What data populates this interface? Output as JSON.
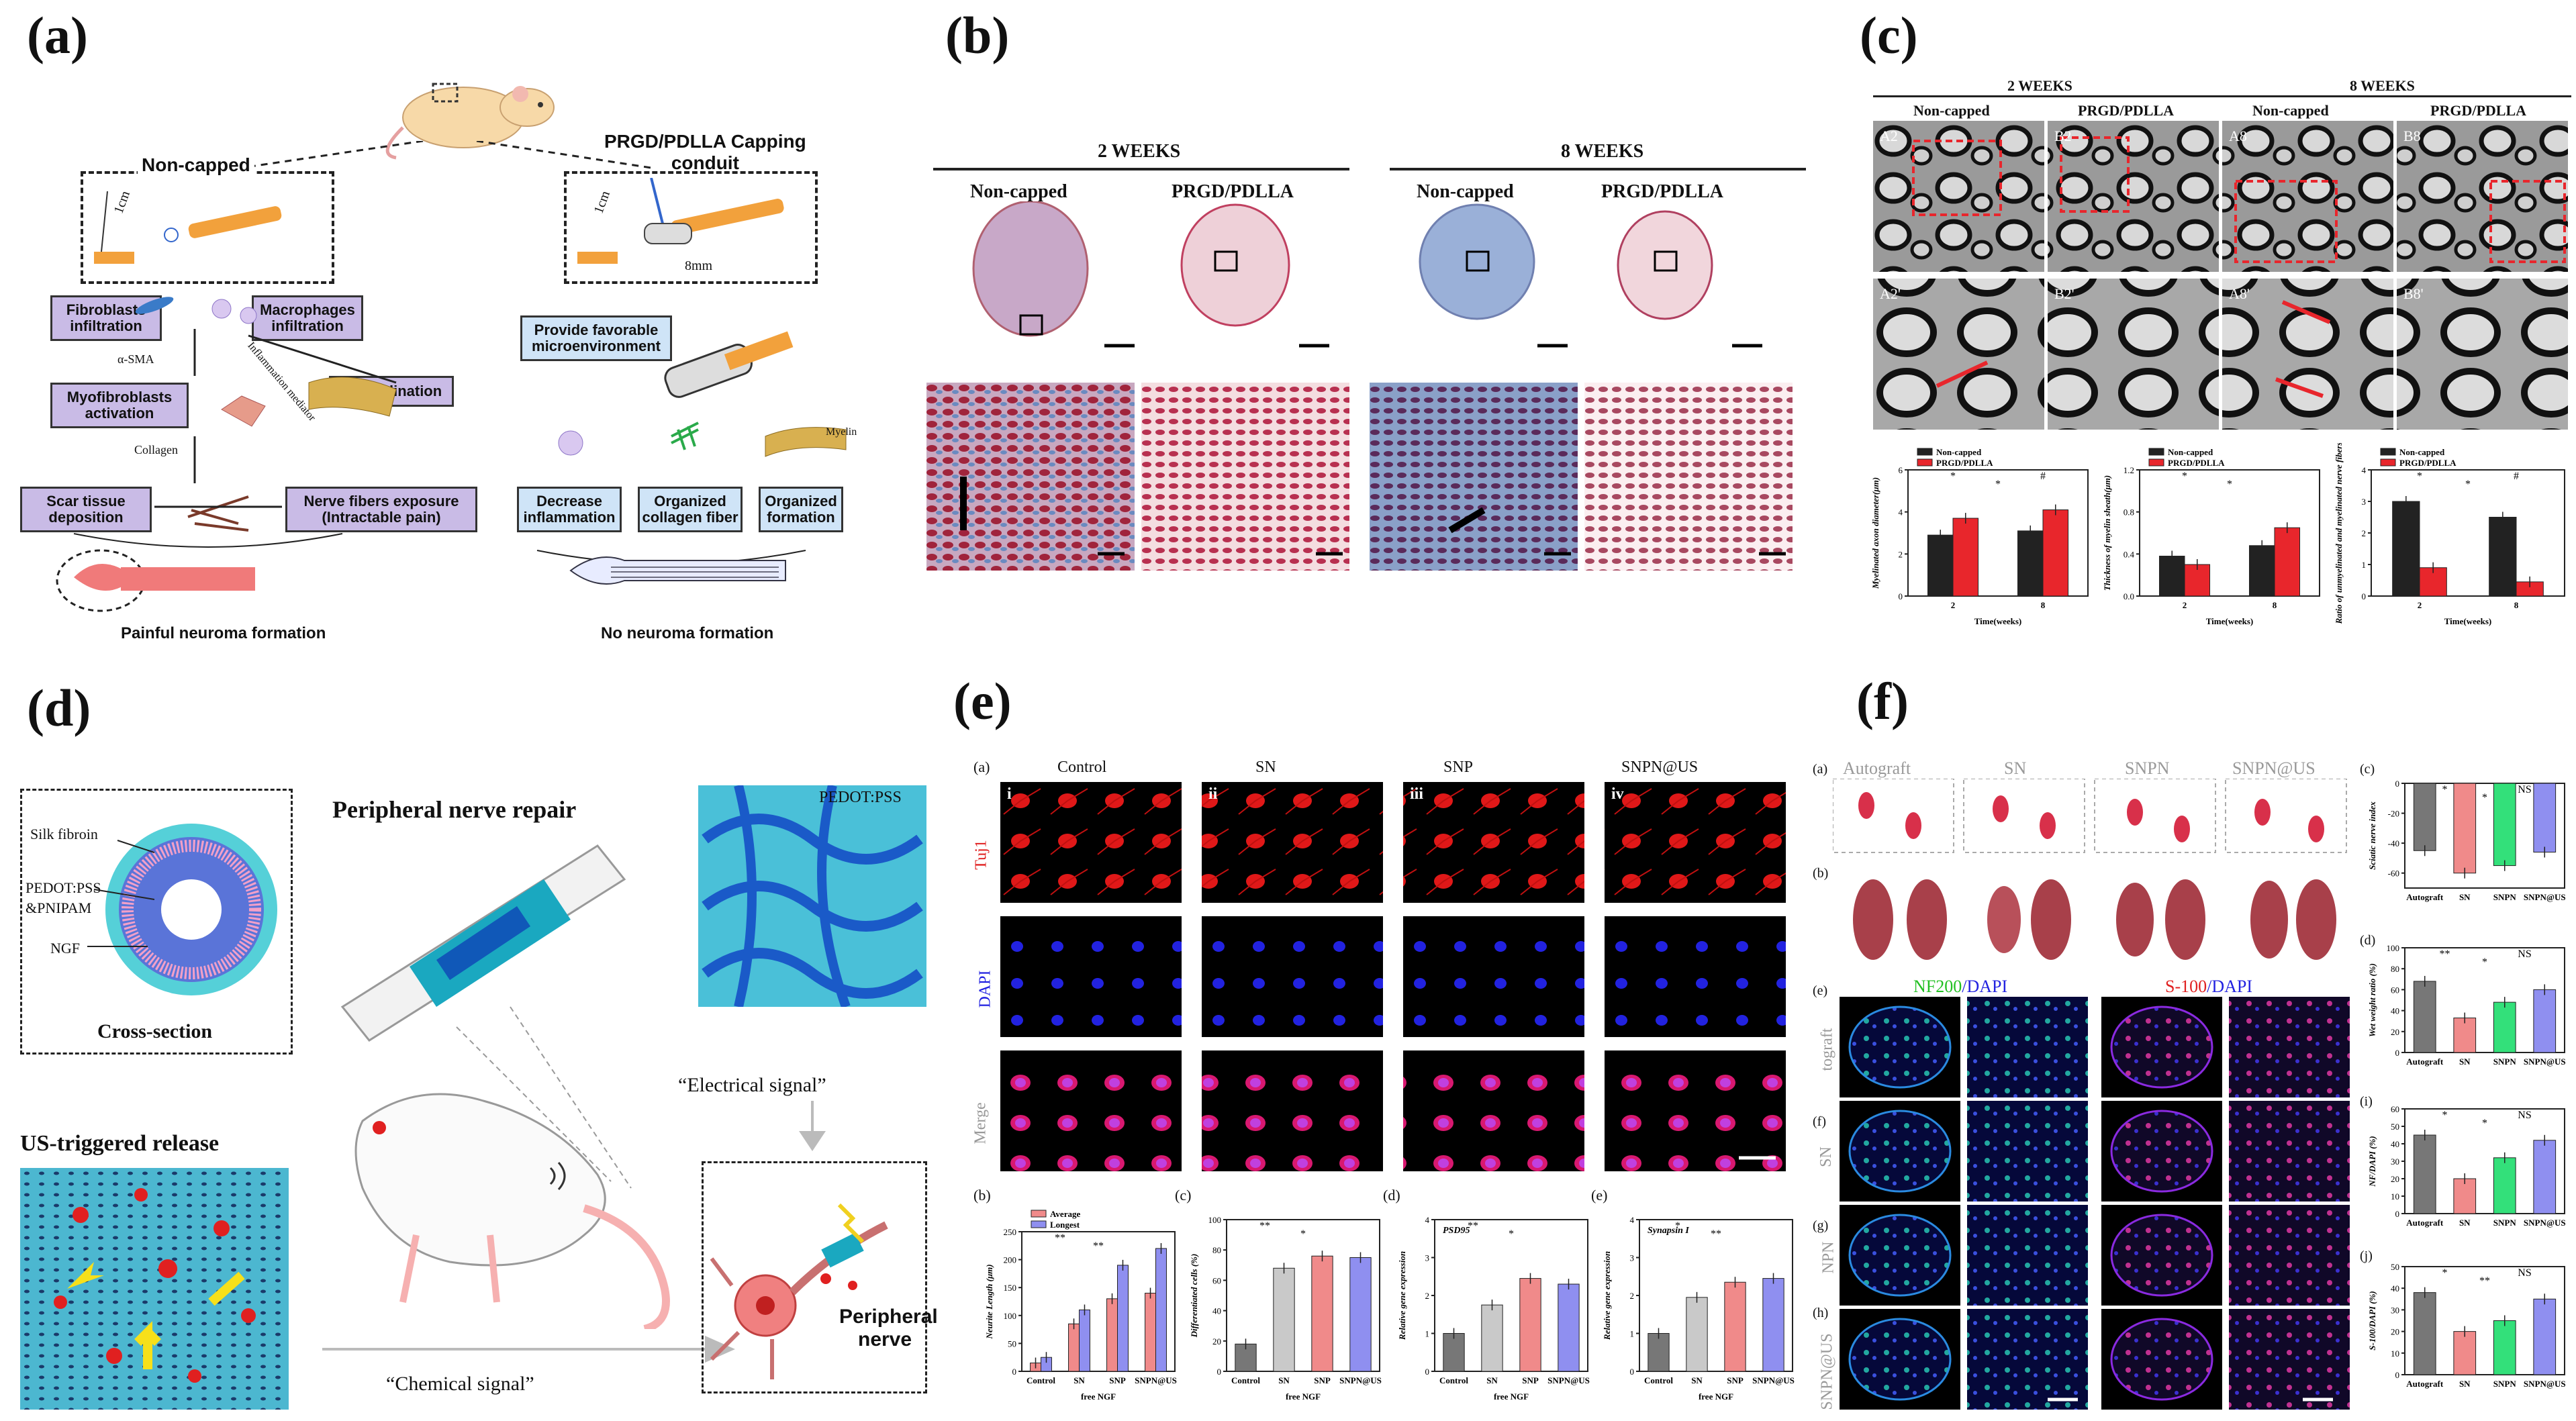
{
  "panels": {
    "a": "(a)",
    "b": "(b)",
    "c": "(c)",
    "d": "(d)",
    "e": "(e)",
    "f": "(f)"
  },
  "a": {
    "noncapped": "Non-capped",
    "capped": "PRGD/PDLLA Capping",
    "capped2": "conduit",
    "len1": "1cm",
    "len2": "1cm",
    "len3": "8mm",
    "fib": "Fibroblasts infiltration",
    "mac": "Macrophages infiltration",
    "myo": "Myofibroblasts activation",
    "demy": "Demyelination",
    "scar": "Scar tissue deposition",
    "nerve": "Nerve fibers exposure (Intractable pain)",
    "asma": "α-SMA",
    "collagen": "Collagen",
    "inflam": "Inflammation mediator",
    "fav": "Provide favorable microenvironment",
    "myelin": "Myelin",
    "dec": "Decrease inflammation",
    "org": "Organized collagen fiber",
    "orgf": "Organized formation",
    "painful": "Painful neuroma formation",
    "noneuroma": "No neuroma formation"
  },
  "b": {
    "w2": "2 WEEKS",
    "w8": "8 WEEKS",
    "cols": [
      "Non-capped",
      "PRGD/PDLLA",
      "Non-capped",
      "PRGD/PDLLA"
    ]
  },
  "c": {
    "w2": "2 WEEKS",
    "w8": "8 WEEKS",
    "cols": [
      "Non-capped",
      "PRGD/PDLLA",
      "Non-capped",
      "PRGD/PDLLA"
    ],
    "em_labels": [
      "A2",
      "B2",
      "A8",
      "B8",
      "A2'",
      "B2'",
      "A8'",
      "B8'"
    ]
  },
  "d": {
    "silk": "Silk fibroin",
    "pedot": "PEDOT:PSS",
    "pnipam": "&PNIPAM",
    "ngf": "NGF",
    "cross": "Cross-section",
    "us": "US-triggered release",
    "repair": "Peripheral nerve repair",
    "pedot2": "PEDOT:PSS",
    "electrical": "“Electrical signal”",
    "chemical": "“Chemical signal”",
    "pn1": "Peripheral",
    "pn2": "nerve"
  },
  "e": {
    "sub_a": "(a)",
    "cols": [
      "Control",
      "SN",
      "SNP",
      "SNPN@US"
    ],
    "roman": [
      "i",
      "ii",
      "iii",
      "iv"
    ],
    "rows": [
      "Tuj1",
      "DAPI",
      "Merge"
    ],
    "sub_b": "(b)",
    "sub_c": "(c)",
    "sub_d": "(d)",
    "sub_e": "(e)",
    "legend_avg": "Average",
    "legend_long": "Longest",
    "free_ngf": "free NGF"
  },
  "f": {
    "cols": [
      "Autograft",
      "SN",
      "SNPN",
      "SNPN@US"
    ],
    "sub": [
      "(a)",
      "(b)",
      "(c)",
      "(d)",
      "(e)",
      "(f)",
      "(g)",
      "(h)",
      "(i)",
      "(j)"
    ],
    "nf200": "NF200",
    "dapi": "/DAPI",
    "s100": "S-100",
    "dapi2": "/DAPI",
    "rows": [
      "tograft",
      "SN",
      "NPN",
      "SNPN@US"
    ]
  },
  "chart_data": [
    {
      "type": "bar",
      "title": "",
      "xlabel": "Time(weeks)",
      "ylabel": "Myelinated axon diameter(μm)",
      "categories": [
        "2",
        "8"
      ],
      "series": [
        {
          "name": "Non-capped",
          "values": [
            2.9,
            3.1
          ]
        },
        {
          "name": "PRGD/PDLLA",
          "values": [
            3.7,
            4.1
          ]
        }
      ],
      "ylim": [
        0,
        6
      ],
      "yticks": [
        "0",
        "2",
        "4",
        "6"
      ],
      "colors": [
        "#222222",
        "#e8262c"
      ],
      "annotations": [
        "*",
        "*",
        "#"
      ]
    },
    {
      "type": "bar",
      "title": "",
      "xlabel": "Time(weeks)",
      "ylabel": "Thickness of myelin sheath(μm)",
      "categories": [
        "2",
        "8"
      ],
      "series": [
        {
          "name": "Non-capped",
          "values": [
            0.38,
            0.48
          ]
        },
        {
          "name": "PRGD/PDLLA",
          "values": [
            0.3,
            0.65
          ]
        }
      ],
      "ylim": [
        0,
        1.2
      ],
      "yticks": [
        "0.0",
        "0.4",
        "0.8",
        "1.2"
      ],
      "colors": [
        "#222222",
        "#e8262c"
      ],
      "annotations": [
        "*",
        "*"
      ]
    },
    {
      "type": "bar",
      "title": "",
      "xlabel": "Time(weeks)",
      "ylabel": "Ratio of unmyelinated and myelinated nerve fibers",
      "categories": [
        "2",
        "8"
      ],
      "series": [
        {
          "name": "Non-capped",
          "values": [
            3.0,
            2.5
          ]
        },
        {
          "name": "PRGD/PDLLA",
          "values": [
            0.9,
            0.45
          ]
        }
      ],
      "ylim": [
        0,
        4
      ],
      "yticks": [
        "0",
        "1",
        "2",
        "3",
        "4"
      ],
      "colors": [
        "#222222",
        "#e8262c"
      ],
      "annotations": [
        "*",
        "*",
        "#"
      ]
    },
    {
      "type": "bar",
      "title": "",
      "xlabel": "free NGF",
      "ylabel": "Neurite Length (μm)",
      "categories": [
        "Control",
        "SN",
        "SNP",
        "SNPN@US"
      ],
      "series": [
        {
          "name": "Average",
          "values": [
            15,
            85,
            130,
            140
          ]
        },
        {
          "name": "Longest",
          "values": [
            25,
            110,
            190,
            220
          ]
        }
      ],
      "ylim": [
        0,
        250
      ],
      "yticks": [
        "0",
        "50",
        "100",
        "150",
        "200",
        "250"
      ],
      "colors": [
        "#f08a8a",
        "#8f8ff0"
      ],
      "annotations": [
        "**",
        "**"
      ]
    },
    {
      "type": "bar",
      "title": "",
      "xlabel": "free NGF",
      "ylabel": "Differentiated cells (%)",
      "categories": [
        "Control",
        "SN",
        "SNP",
        "SNPN@US"
      ],
      "series": [
        {
          "name": "",
          "values": [
            18,
            68,
            76,
            75
          ]
        }
      ],
      "ylim": [
        0,
        100
      ],
      "yticks": [
        "0",
        "20",
        "40",
        "60",
        "80",
        "100"
      ],
      "colors": [
        "#777777",
        "#c9c9c9",
        "#f08a8a",
        "#8f8ff0"
      ],
      "annotations": [
        "**",
        "*"
      ]
    },
    {
      "type": "bar",
      "title": "PSD95",
      "xlabel": "free NGF",
      "ylabel": "Relative gene expression",
      "categories": [
        "Control",
        "SN",
        "SNP",
        "SNPN@US"
      ],
      "series": [
        {
          "name": "",
          "values": [
            1.0,
            1.75,
            2.45,
            2.3
          ]
        }
      ],
      "ylim": [
        0,
        4
      ],
      "yticks": [
        "0",
        "1",
        "2",
        "3",
        "4"
      ],
      "colors": [
        "#777777",
        "#c9c9c9",
        "#f08a8a",
        "#8f8ff0"
      ],
      "annotations": [
        "**",
        "*"
      ]
    },
    {
      "type": "bar",
      "title": "Synapsin I",
      "xlabel": "free NGF",
      "ylabel": "Relative gene expression",
      "categories": [
        "Control",
        "SN",
        "SNP",
        "SNPN@US"
      ],
      "series": [
        {
          "name": "",
          "values": [
            1.0,
            1.95,
            2.35,
            2.45
          ]
        }
      ],
      "ylim": [
        0,
        4
      ],
      "yticks": [
        "0",
        "1",
        "2",
        "3",
        "4"
      ],
      "colors": [
        "#777777",
        "#c9c9c9",
        "#f08a8a",
        "#8f8ff0"
      ],
      "annotations": [
        "*",
        "**"
      ]
    },
    {
      "type": "bar",
      "title": "",
      "xlabel": "",
      "ylabel": "Sciatic nerve index",
      "categories": [
        "Autograft",
        "SN",
        "SNPN",
        "SNPN@US"
      ],
      "series": [
        {
          "name": "",
          "values": [
            -45,
            -60,
            -55,
            -46
          ]
        }
      ],
      "ylim": [
        -70,
        0
      ],
      "yticks": [
        "0",
        "-20",
        "-40",
        "-60"
      ],
      "colors": [
        "#777777",
        "#f08a8a",
        "#33e07a",
        "#8f8ff0"
      ],
      "annotations": [
        "*",
        "*",
        "NS"
      ]
    },
    {
      "type": "bar",
      "title": "",
      "xlabel": "",
      "ylabel": "Wet weight ratio (%)",
      "categories": [
        "Autograft",
        "SN",
        "SNPN",
        "SNPN@US"
      ],
      "series": [
        {
          "name": "",
          "values": [
            68,
            33,
            48,
            60
          ]
        }
      ],
      "ylim": [
        0,
        100
      ],
      "yticks": [
        "0",
        "20",
        "40",
        "60",
        "80",
        "100"
      ],
      "colors": [
        "#777777",
        "#f08a8a",
        "#33e07a",
        "#8f8ff0"
      ],
      "annotations": [
        "**",
        "*",
        "NS"
      ]
    },
    {
      "type": "bar",
      "title": "",
      "xlabel": "",
      "ylabel": "NF/DAPI (%)",
      "categories": [
        "Autograft",
        "SN",
        "SNPN",
        "SNPN@US"
      ],
      "series": [
        {
          "name": "",
          "values": [
            45,
            20,
            32,
            42
          ]
        }
      ],
      "ylim": [
        0,
        60
      ],
      "yticks": [
        "0",
        "10",
        "20",
        "30",
        "40",
        "50",
        "60"
      ],
      "colors": [
        "#777777",
        "#f08a8a",
        "#33e07a",
        "#8f8ff0"
      ],
      "annotations": [
        "*",
        "*",
        "NS"
      ]
    },
    {
      "type": "bar",
      "title": "",
      "xlabel": "",
      "ylabel": "S-100/DAPI (%)",
      "categories": [
        "Autograft",
        "SN",
        "SNPN",
        "SNPN@US"
      ],
      "series": [
        {
          "name": "",
          "values": [
            38,
            20,
            25,
            35
          ]
        }
      ],
      "ylim": [
        0,
        50
      ],
      "yticks": [
        "0",
        "10",
        "20",
        "30",
        "40",
        "50"
      ],
      "colors": [
        "#777777",
        "#f08a8a",
        "#33e07a",
        "#8f8ff0"
      ],
      "annotations": [
        "*",
        "**",
        "NS"
      ]
    }
  ]
}
